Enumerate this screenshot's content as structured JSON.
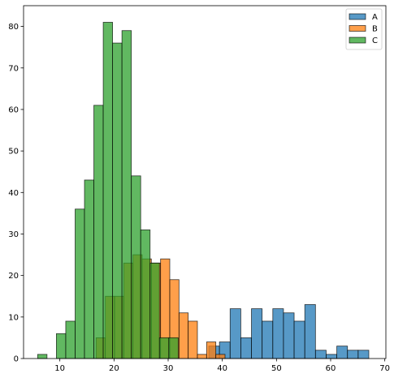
{
  "chart_data": {
    "type": "histogram",
    "title": "",
    "xlabel": "",
    "ylabel": "",
    "xlim": [
      3.3,
      70.2
    ],
    "ylim": [
      0,
      85
    ],
    "xticks": [
      10,
      20,
      30,
      40,
      50,
      60,
      70
    ],
    "yticks": [
      0,
      10,
      20,
      30,
      40,
      50,
      60,
      70,
      80
    ],
    "grid": false,
    "legend_position": "top-right",
    "alpha": 0.75,
    "series": [
      {
        "name": "A",
        "color": "#1f77b4",
        "bin_start": 37.5,
        "bin_width": 1.97,
        "counts": [
          3,
          4,
          12,
          5,
          12,
          9,
          12,
          11,
          9,
          13,
          2,
          1,
          3,
          2,
          2
        ]
      },
      {
        "name": "B",
        "color": "#ff7f0e",
        "bin_start": 16.7,
        "bin_width": 1.7,
        "counts": [
          5,
          15,
          15,
          23,
          25,
          24,
          23,
          24,
          19,
          11,
          9,
          1,
          4,
          1
        ]
      },
      {
        "name": "C",
        "color": "#2ca02c",
        "bin_start": 5.9,
        "bin_width": 1.73,
        "counts": [
          1,
          0,
          6,
          9,
          36,
          43,
          61,
          81,
          76,
          79,
          44,
          31,
          23,
          5,
          5
        ]
      }
    ]
  }
}
